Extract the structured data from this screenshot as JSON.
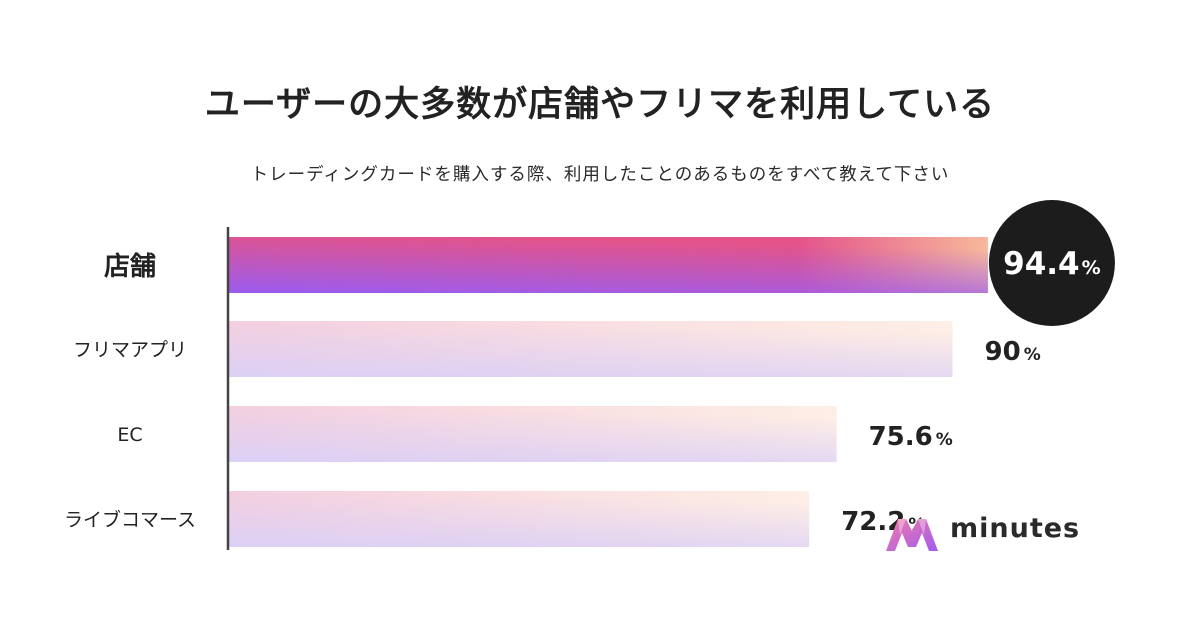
{
  "title": "ユーザーの大多数が店舗やフリマを利用している",
  "subtitle": "トレーディングカードを購入する際、利用したことのあるものをすべて教えて下さい",
  "brand": {
    "name": "minutes",
    "colors": [
      "#e0609a",
      "#9b5cf0"
    ]
  },
  "colors": {
    "highlight_start": "#9b5cf0",
    "highlight_mid": "#e4538a",
    "highlight_end": "#f7b89b",
    "bar_light_start": "#dcd0f6",
    "bar_light_mid": "#f6cfdd",
    "bar_light_end": "#fdeee6",
    "badge_bg": "#1c1c1c",
    "axis": "#444444"
  },
  "chart_data": {
    "type": "bar",
    "orientation": "horizontal",
    "categories": [
      "店舗",
      "フリマアプリ",
      "EC",
      "ライブコマース"
    ],
    "values": [
      94.4,
      90,
      75.6,
      72.2
    ],
    "labels": [
      "94.4",
      "90",
      "75.6",
      "72.2"
    ],
    "unit": "%",
    "highlight_index": 0,
    "xlim": [
      0,
      100
    ],
    "grid": false,
    "legend": "none"
  }
}
